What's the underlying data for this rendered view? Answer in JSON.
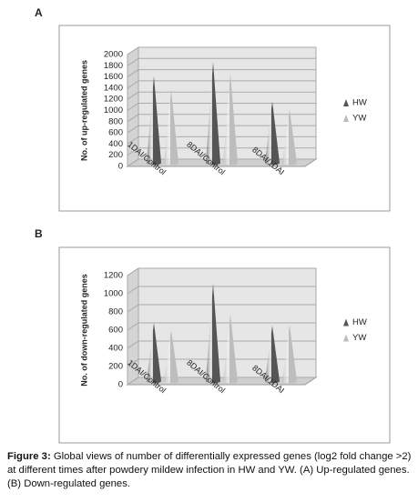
{
  "chart_data": [
    {
      "type": "bar",
      "panel": "A",
      "y_label": "No. of up-regulated genes",
      "categories": [
        "1DAI/Control",
        "8DAI/Control",
        "8DAI/1DAI"
      ],
      "series": [
        {
          "name": "HW",
          "color": "#555555",
          "values": [
            1550,
            1800,
            1100
          ]
        },
        {
          "name": "YW",
          "color": "#bdbdbd",
          "values": [
            1300,
            1600,
            950
          ]
        }
      ],
      "ylim": [
        0,
        2000
      ],
      "yticks": [
        0,
        200,
        400,
        600,
        800,
        1000,
        1200,
        1400,
        1600,
        1800,
        2000
      ],
      "grid": true,
      "legend": "right"
    },
    {
      "type": "bar",
      "panel": "B",
      "y_label": "No. of down-regulated genes",
      "categories": [
        "1DAI/Control",
        "8DAI/Control",
        "8DAI/1DAI"
      ],
      "series": [
        {
          "name": "HW",
          "color": "#555555",
          "values": [
            640,
            1070,
            610
          ]
        },
        {
          "name": "YW",
          "color": "#bdbdbd",
          "values": [
            560,
            730,
            620
          ]
        }
      ],
      "ylim": [
        0,
        1200
      ],
      "yticks": [
        0,
        200,
        400,
        600,
        800,
        1000,
        1200
      ],
      "grid": true,
      "legend": "right"
    }
  ],
  "caption": {
    "label": "Figure 3:",
    "text": "Global views of number of differentially expressed genes (log2 fold change >2) at different times after powdery mildew infection in HW and YW. (A) Up-regulated genes. (B) Down-regulated genes."
  }
}
